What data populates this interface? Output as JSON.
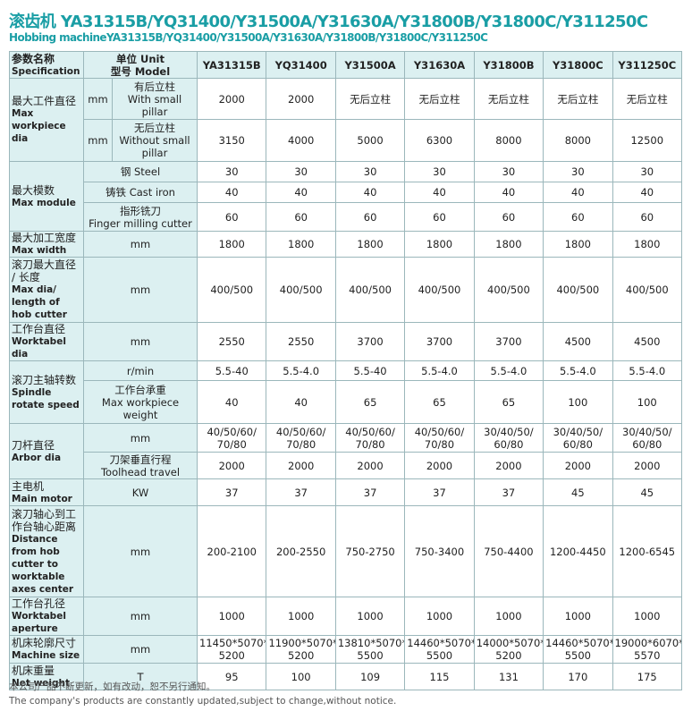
{
  "title": "滚齿机 YA31315B/YQ31400/Y31500A/Y31630A/Y31800B/Y31800C/Y311250C",
  "subtitle": "Hobbing machineYA31315B/YQ31400/Y31500A/Y31630A/Y31800B/Y31800C/Y311250C",
  "table": {
    "header": {
      "spec": {
        "zh": "参数名称",
        "en": "Specification"
      },
      "unit": {
        "zh": "单位 Unit",
        "en": "型号 Model"
      },
      "models": [
        "YA31315B",
        "YQ31400",
        "Y31500A",
        "Y31630A",
        "Y31800B",
        "Y31800C",
        "Y311250C"
      ]
    },
    "groups": [
      {
        "label": {
          "zh": "最大工件直径",
          "en": "Max workpiece dia"
        },
        "rows": [
          {
            "unit": "mm",
            "sub": {
              "zh": "有后立柱",
              "en": "With small pillar"
            },
            "values": [
              2000,
              2000,
              "无后立柱",
              "无后立柱",
              "无后立柱",
              "无后立柱",
              "无后立柱"
            ]
          },
          {
            "unit": "mm",
            "sub": {
              "zh": "无后立柱",
              "en": "Without small pillar"
            },
            "values": [
              3150,
              4000,
              5000,
              6300,
              8000,
              8000,
              12500
            ]
          }
        ]
      },
      {
        "label": {
          "zh": "最大模数",
          "en": "Max module"
        },
        "rows": [
          {
            "sub": "钢 Steel",
            "values": [
              30,
              30,
              30,
              30,
              30,
              30,
              30
            ]
          },
          {
            "sub": "铸铁 Cast iron",
            "values": [
              40,
              40,
              40,
              40,
              40,
              40,
              40
            ]
          },
          {
            "sub": {
              "zh": "指形铣刀",
              "en": "Finger milling cutter"
            },
            "values": [
              60,
              60,
              60,
              60,
              60,
              60,
              60
            ]
          }
        ]
      },
      {
        "label": {
          "zh": "最大加工宽度",
          "en": "Max width"
        },
        "rows": [
          {
            "unit": "mm",
            "values": [
              1800,
              1800,
              1800,
              1800,
              1800,
              1800,
              1800
            ]
          }
        ]
      },
      {
        "label": {
          "zh": "滚刀最大直径 / 长度",
          "en": "Max dia/ length of hob cutter"
        },
        "rows": [
          {
            "unit": "mm",
            "values": [
              "400/500",
              "400/500",
              "400/500",
              "400/500",
              "400/500",
              "400/500",
              "400/500"
            ]
          }
        ]
      },
      {
        "label": {
          "zh": "工作台直径",
          "en": "Worktabel dia"
        },
        "rows": [
          {
            "unit": "mm",
            "values": [
              2550,
              2550,
              3700,
              3700,
              3700,
              4500,
              4500
            ]
          }
        ]
      },
      {
        "label": {
          "zh": "滚刀主轴转数",
          "en": "Spindle rotate speed"
        },
        "rows": [
          {
            "unit": "r/min",
            "values": [
              "5.5-40",
              "5.5-4.0",
              "5.5-40",
              "5.5-4.0",
              "5.5-4.0",
              "5.5-4.0",
              "5.5-4.0"
            ]
          },
          {
            "sub": {
              "zh": "工作台承重",
              "en": "Max workpiece weight"
            },
            "values": [
              40,
              40,
              65,
              65,
              65,
              100,
              100
            ]
          }
        ]
      },
      {
        "label": {
          "zh": "刀杆直径",
          "en": "Arbor dia"
        },
        "rows": [
          {
            "unit": "mm",
            "values": [
              [
                "40/50/60/",
                "70/80"
              ],
              [
                "40/50/60/",
                "70/80"
              ],
              [
                "40/50/60/",
                "70/80"
              ],
              [
                "40/50/60/",
                "70/80"
              ],
              [
                "30/40/50/",
                "60/80"
              ],
              [
                "30/40/50/",
                "60/80"
              ],
              [
                "30/40/50/",
                "60/80"
              ]
            ]
          },
          {
            "sub": {
              "zh": "刀架垂直行程",
              "en": "Toolhead travel"
            },
            "values": [
              2000,
              2000,
              2000,
              2000,
              2000,
              2000,
              2000
            ]
          }
        ]
      },
      {
        "label": {
          "zh": "主电机",
          "en": "Main motor"
        },
        "rows": [
          {
            "unit": "KW",
            "values": [
              37,
              37,
              37,
              37,
              37,
              45,
              45
            ]
          }
        ]
      },
      {
        "label": {
          "zh": "滚刀轴心到工作台轴心距离",
          "en": "Distance from hob cutter to worktable axes center"
        },
        "rows": [
          {
            "unit": "mm",
            "values": [
              "200-2100",
              "200-2550",
              "750-2750",
              "750-3400",
              "750-4400",
              "1200-4450",
              "1200-6545"
            ]
          }
        ]
      },
      {
        "label": {
          "zh": "工作台孔径",
          "en": "Worktabel aperture"
        },
        "rows": [
          {
            "unit": "mm",
            "values": [
              1000,
              1000,
              1000,
              1000,
              1000,
              1000,
              1000
            ]
          }
        ]
      },
      {
        "label": {
          "zh": "机床轮廓尺寸",
          "en": "Machine size"
        },
        "rows": [
          {
            "unit": "mm",
            "values": [
              [
                "11450*5070*",
                "5200"
              ],
              [
                "11900*5070*",
                "5200"
              ],
              [
                "13810*5070*",
                "5500"
              ],
              [
                "14460*5070*",
                "5500"
              ],
              [
                "14000*5070*",
                "5200"
              ],
              [
                "14460*5070*",
                "5500"
              ],
              [
                "19000*6070*",
                "5570"
              ]
            ]
          }
        ]
      },
      {
        "label": {
          "zh": "机床重量",
          "en": "Net weight"
        },
        "rows": [
          {
            "unit": "T",
            "values": [
              95,
              100,
              109,
              115,
              131,
              170,
              175
            ]
          }
        ]
      }
    ]
  },
  "notes": [
    "本公司产品不断更新，如有改动，恕不另行通知。",
    "The company's products are constantly updated,subject to change,without notice."
  ]
}
